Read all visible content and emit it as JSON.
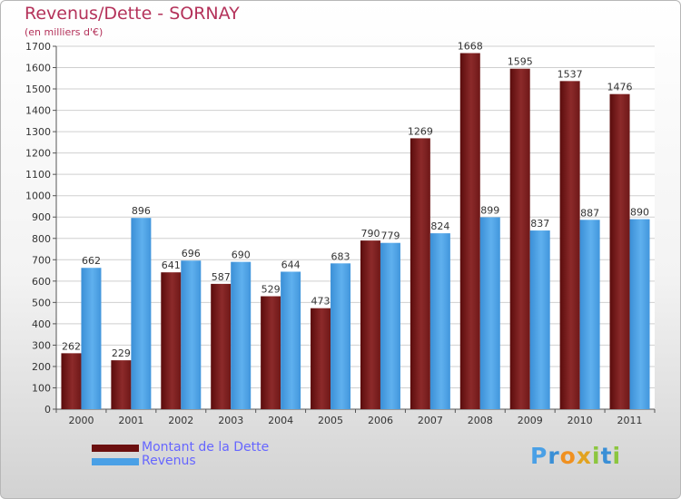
{
  "title": "Revenus/Dette - SORNAY",
  "subtitle": "(en milliers d'€)",
  "colors": {
    "dette": "#7a1f1f",
    "revenus": "#4a9fe0",
    "title": "#b4325a",
    "legend_text": "#6666ff"
  },
  "legend": [
    {
      "label": "Montant de la Dette",
      "color": "#6b0f0f"
    },
    {
      "label": "Revenus",
      "color": "#4aa0e6"
    }
  ],
  "logo": {
    "letters": [
      "P",
      "r",
      "o",
      "x",
      "i",
      "t",
      "i"
    ],
    "colors": [
      "#4aa0e6",
      "#3a8fd6",
      "#f09020",
      "#e2a320",
      "#8cc63f",
      "#3a8fd6",
      "#8cc63f"
    ]
  },
  "chart_data": {
    "type": "bar",
    "categories": [
      "2000",
      "2001",
      "2002",
      "2003",
      "2004",
      "2005",
      "2006",
      "2007",
      "2008",
      "2009",
      "2010",
      "2011"
    ],
    "series": [
      {
        "name": "Montant de la Dette",
        "values": [
          262,
          229,
          641,
          587,
          529,
          473,
          790,
          1269,
          1668,
          1595,
          1537,
          1476
        ]
      },
      {
        "name": "Revenus",
        "values": [
          662,
          896,
          696,
          690,
          644,
          683,
          779,
          824,
          899,
          837,
          887,
          890
        ]
      }
    ],
    "ylim": [
      0,
      1700
    ],
    "yticks": [
      0,
      100,
      200,
      300,
      400,
      500,
      600,
      700,
      800,
      900,
      1000,
      1100,
      1200,
      1300,
      1400,
      1500,
      1600,
      1700
    ],
    "grid": true,
    "data_labels": true,
    "legend_position": "bottom-left"
  }
}
